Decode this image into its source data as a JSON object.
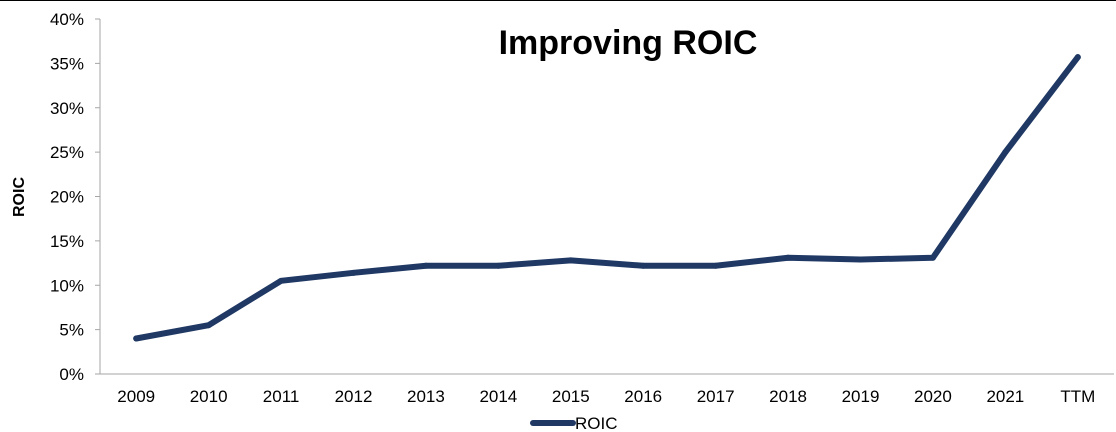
{
  "chart_data": {
    "type": "line",
    "title": "Improving ROIC",
    "xlabel": "",
    "ylabel": "ROIC",
    "categories": [
      "2009",
      "2010",
      "2011",
      "2012",
      "2013",
      "2014",
      "2015",
      "2016",
      "2017",
      "2018",
      "2019",
      "2020",
      "2021",
      "TTM"
    ],
    "series": [
      {
        "name": "ROIC",
        "values": [
          4.0,
          5.5,
          10.5,
          11.4,
          12.2,
          12.2,
          12.8,
          12.2,
          12.2,
          13.1,
          12.9,
          13.1,
          25.0,
          35.7
        ],
        "color": "#1f3864"
      }
    ],
    "ylim": [
      0,
      40
    ],
    "yticks": [
      0,
      5,
      10,
      15,
      20,
      25,
      30,
      35,
      40
    ],
    "ytick_labels": [
      "0%",
      "5%",
      "10%",
      "15%",
      "20%",
      "25%",
      "30%",
      "35%",
      "40%"
    ],
    "grid": false,
    "legend_position": "bottom"
  }
}
